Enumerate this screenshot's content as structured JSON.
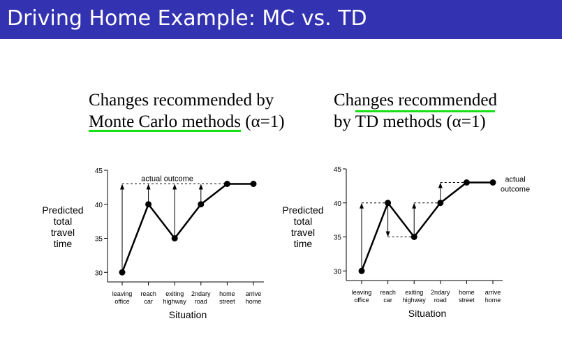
{
  "slide": {
    "title": "Driving Home Example: MC vs. TD"
  },
  "accent_color": "#3333b2",
  "highlight_color": "#16e016",
  "left_panel": {
    "heading_line1": "Changes recommended by",
    "heading_line2_highlight": "Monte Carlo methods",
    "heading_line2_rest": " (α=1)"
  },
  "right_panel": {
    "heading_line1_highlight": "Changes recommended",
    "heading_line2": "by TD methods (α=1)"
  },
  "chart_data": [
    {
      "type": "line",
      "id": "mc",
      "ylabel": [
        "Predicted",
        "total",
        "travel",
        "time"
      ],
      "xlabel": "Situation",
      "categories": [
        [
          "leaving",
          "office"
        ],
        [
          "reach",
          "car"
        ],
        [
          "exiting",
          "highway"
        ],
        [
          "2ndary",
          "road"
        ],
        [
          "home",
          "street"
        ],
        [
          "arrive",
          "home"
        ]
      ],
      "values": [
        30,
        40,
        35,
        40,
        43,
        43
      ],
      "yticks": [
        30,
        35,
        40,
        45
      ],
      "ylim": [
        29,
        45
      ],
      "annotation": "actual outcome",
      "actual_outcome": 43
    },
    {
      "type": "line",
      "id": "td",
      "ylabel": [
        "Predicted",
        "total",
        "travel",
        "time"
      ],
      "xlabel": "Situation",
      "categories": [
        [
          "leaving",
          "office"
        ],
        [
          "reach",
          "car"
        ],
        [
          "exiting",
          "highway"
        ],
        [
          "2ndary",
          "road"
        ],
        [
          "home",
          "street"
        ],
        [
          "arrive",
          "home"
        ]
      ],
      "values": [
        30,
        40,
        35,
        40,
        43,
        43
      ],
      "yticks": [
        30,
        35,
        40,
        45
      ],
      "ylim": [
        29,
        45
      ],
      "annotation": [
        "actual",
        "outcome"
      ],
      "actual_outcome": 43
    }
  ]
}
